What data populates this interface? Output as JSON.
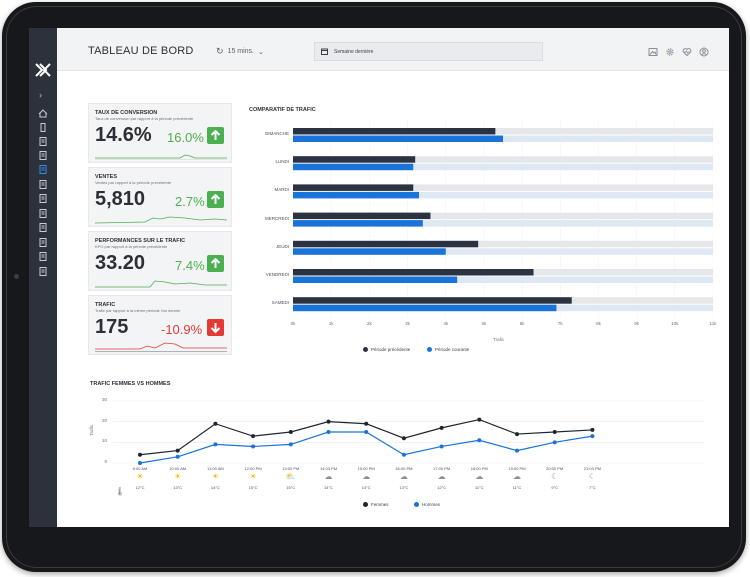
{
  "header": {
    "title": "TABLEAU DE BORD",
    "refresh_label": "15 mins.",
    "date_range": "Semaine dernière"
  },
  "kpis": [
    {
      "title": "TAUX DE CONVERSION",
      "subtitle": "Taux de conversion par rapport à la période précédente",
      "value": "14.6%",
      "change": "16.0%",
      "trend": "up",
      "color": "#4caf50"
    },
    {
      "title": "VENTES",
      "subtitle": "Ventes par rapport à la période précédente",
      "value": "5,810",
      "change": "2.7%",
      "trend": "up",
      "color": "#4caf50"
    },
    {
      "title": "PERFORMANCES SUR LE TRAFIC",
      "subtitle": "KPO par rapport à la période précédente",
      "value": "33.20",
      "change": "7.4%",
      "trend": "up",
      "color": "#4caf50"
    },
    {
      "title": "TRAFIC",
      "subtitle": "Trafic par rapport à la même période l'an dernier",
      "value": "175",
      "change": "-10.9%",
      "trend": "down",
      "color": "#e53935"
    }
  ],
  "traffic_comparison": {
    "title": "COMPARATIF DE TRAFIC",
    "xlabel": "Trafic",
    "legend": [
      "Période précédente",
      "Période courante"
    ],
    "colors": {
      "previous": "#2b3342",
      "current": "#1a73d9",
      "track": "#e5e7ea",
      "track_light": "#dde8f4"
    }
  },
  "gender_traffic": {
    "title": "TRAFIC FEMMES VS HOMMES",
    "ylabel": "Trafic",
    "legend": [
      "Femmes",
      "Hommes"
    ],
    "timeline": [
      {
        "time": "9:00 AM",
        "temp": "12°C",
        "icon": "sun-icon"
      },
      {
        "time": "10:00 AM",
        "temp": "13°C",
        "icon": "sun-icon"
      },
      {
        "time": "11:00 AM",
        "temp": "14°C",
        "icon": "sun-icon"
      },
      {
        "time": "12:00 PM",
        "temp": "15°C",
        "icon": "sun-icon"
      },
      {
        "time": "13:00 PM",
        "temp": "15°C",
        "icon": "partly-cloudy-icon"
      },
      {
        "time": "14:03 PM",
        "temp": "14°C",
        "icon": "cloud-icon"
      },
      {
        "time": "15:00 PM",
        "temp": "14°C",
        "icon": "cloud-icon"
      },
      {
        "time": "16:00 PM",
        "temp": "13°C",
        "icon": "cloud-icon"
      },
      {
        "time": "17:00 PM",
        "temp": "12°C",
        "icon": "cloud-icon"
      },
      {
        "time": "18:00 PM",
        "temp": "11°C",
        "icon": "cloud-icon"
      },
      {
        "time": "19:00 PM",
        "temp": "11°C",
        "icon": "cloud-icon"
      },
      {
        "time": "20:00 PM",
        "temp": "9°C",
        "icon": "night-cloud-icon"
      },
      {
        "time": "21:03 PM",
        "temp": "7°C",
        "icon": "night-cloud-icon"
      }
    ]
  },
  "chart_data": [
    {
      "type": "bar",
      "title": "COMPARATIF DE TRAFIC",
      "xlabel": "Trafic",
      "orientation": "horizontal",
      "categories": [
        "DIMANCHE",
        "LUNDI",
        "MARDI",
        "MERCREDI",
        "JEUDI",
        "VENDREDI",
        "SAMEDI"
      ],
      "x_ticks": [
        "0k",
        "1k",
        "2k",
        "3k",
        "4k",
        "5k",
        "6k",
        "7k",
        "8k",
        "9k",
        "10k",
        "11k"
      ],
      "xlim": [
        0,
        11000
      ],
      "series": [
        {
          "name": "Période précédente",
          "values": [
            5300,
            3200,
            3150,
            3600,
            4850,
            6300,
            7300
          ]
        },
        {
          "name": "Période courante",
          "values": [
            5500,
            3150,
            3300,
            3400,
            4000,
            4300,
            6900
          ]
        }
      ],
      "legend_position": "bottom"
    },
    {
      "type": "line",
      "title": "TRAFIC FEMMES VS HOMMES",
      "ylabel": "Trafic",
      "x": [
        "9:00 AM",
        "10:00 AM",
        "11:00 AM",
        "12:00 PM",
        "13:00 PM",
        "14:03 PM",
        "15:00 PM",
        "16:00 PM",
        "17:00 PM",
        "18:00 PM",
        "19:00 PM",
        "20:00 PM",
        "21:03 PM"
      ],
      "y_ticks": [
        "0",
        "10",
        "20",
        "30"
      ],
      "ylim": [
        0,
        30
      ],
      "series": [
        {
          "name": "Femmes",
          "values": [
            4,
            6,
            19,
            13,
            15,
            20,
            19,
            12,
            17,
            21,
            14,
            15,
            16
          ]
        },
        {
          "name": "Hommes",
          "values": [
            0,
            3,
            9,
            8,
            9,
            15,
            15,
            4,
            8,
            11,
            6,
            10,
            13
          ]
        }
      ],
      "legend_position": "bottom"
    }
  ]
}
